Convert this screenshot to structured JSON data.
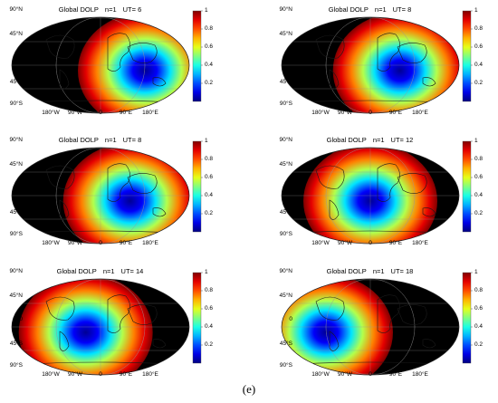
{
  "panels": [
    {
      "title": "Global DOLP",
      "n": "n=1",
      "ut": "UT= 6",
      "sun_lon_deg": 90
    },
    {
      "title": "Global DOLP",
      "n": "n=1",
      "ut": "UT= 8",
      "sun_lon_deg": 60
    },
    {
      "title": "Global DOLP",
      "n": "n=1",
      "ut": "UT= 8",
      "sun_lon_deg": 60
    },
    {
      "title": "Global DOLP",
      "n": "n=1",
      "ut": "UT= 12",
      "sun_lon_deg": 0
    },
    {
      "title": "Global DOLP",
      "n": "n=1",
      "ut": "UT= 14",
      "sun_lon_deg": -30
    },
    {
      "title": "Global DOLP",
      "n": "n=1",
      "ut": "UT= 18",
      "sun_lon_deg": -90
    }
  ],
  "lat_labels": [
    "90°N",
    "45°N",
    "0",
    "45°S",
    "90°S"
  ],
  "lon_labels": [
    "180°W",
    "90°W",
    "0",
    "90°E",
    "180°E"
  ],
  "colorbar": {
    "ticks": [
      "1",
      "0.8",
      "0.6",
      "0.4",
      "0.2"
    ],
    "min": 0,
    "max": 1,
    "colormap": "jet"
  },
  "night_color": "#000000",
  "caption": "(e)"
}
